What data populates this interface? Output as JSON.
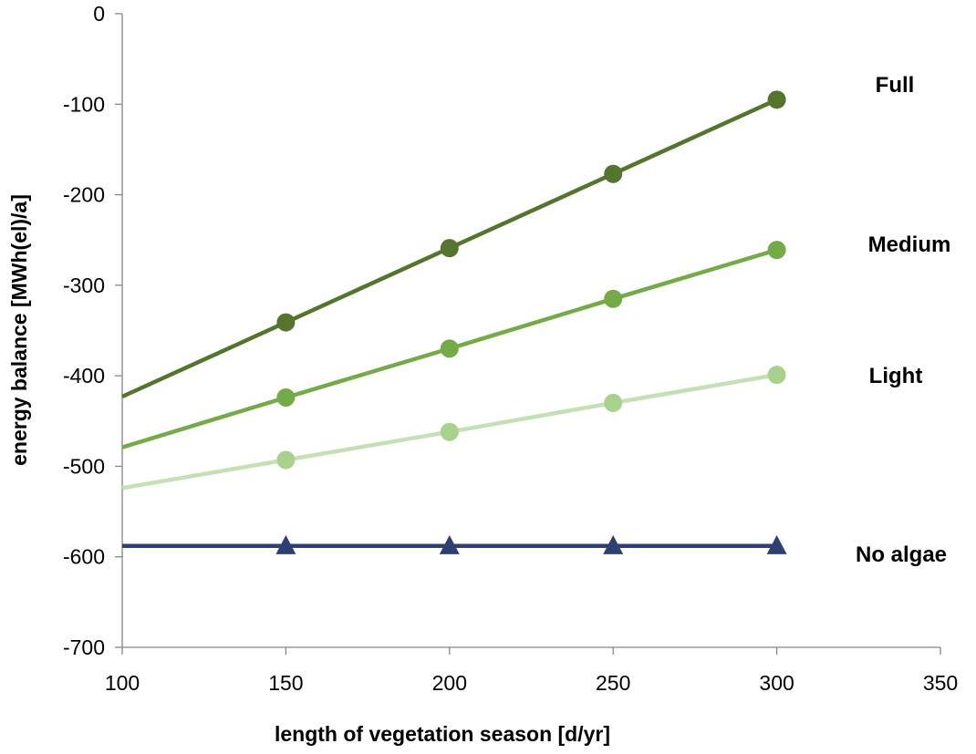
{
  "chart_data": {
    "type": "line",
    "title": "",
    "xlabel": "length of vegetation season [d/yr]",
    "ylabel": "energy balance [MWh(el)/a]",
    "xlim": [
      100,
      350
    ],
    "ylim": [
      -700,
      0
    ],
    "xticks": [
      100,
      150,
      200,
      250,
      300,
      350
    ],
    "yticks": [
      0,
      -100,
      -200,
      -300,
      -400,
      -500,
      -600,
      -700
    ],
    "grid": false,
    "legend": "none",
    "series": [
      {
        "name": "Full",
        "color": "#55752f",
        "marker": "circle",
        "points": [
          [
            100,
            -423
          ],
          [
            150,
            -341
          ],
          [
            200,
            -259
          ],
          [
            250,
            -177
          ],
          [
            300,
            -95
          ]
        ],
        "markers_at": [
          150,
          200,
          250,
          300
        ]
      },
      {
        "name": "Medium",
        "color": "#74aa48",
        "marker": "circle",
        "points": [
          [
            100,
            -479
          ],
          [
            150,
            -424
          ],
          [
            200,
            -370
          ],
          [
            250,
            -315
          ],
          [
            300,
            -261
          ]
        ],
        "markers_at": [
          150,
          200,
          250,
          300
        ]
      },
      {
        "name": "Light",
        "color": "#a9d18e",
        "line_color": "#c5e0b4",
        "marker": "circle",
        "points": [
          [
            100,
            -524
          ],
          [
            150,
            -493
          ],
          [
            200,
            -462
          ],
          [
            250,
            -430
          ],
          [
            300,
            -399
          ]
        ],
        "markers_at": [
          150,
          200,
          250,
          300
        ]
      },
      {
        "name": "No algae",
        "color": "#2f4070",
        "marker": "triangle",
        "points": [
          [
            100,
            -588
          ],
          [
            150,
            -588
          ],
          [
            200,
            -588
          ],
          [
            250,
            -588
          ],
          [
            300,
            -588
          ]
        ],
        "markers_at": [
          150,
          200,
          250,
          300
        ]
      }
    ]
  }
}
